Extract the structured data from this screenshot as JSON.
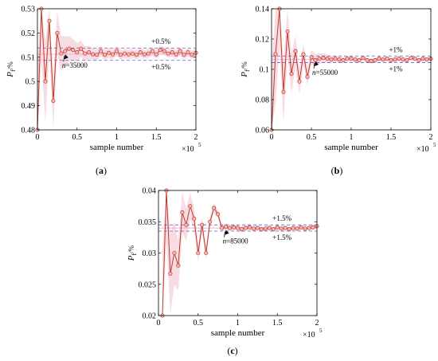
{
  "chart_data": [
    {
      "type": "line",
      "panel_label": "(a)",
      "ylabel_main": "P",
      "ylabel_sub": "f",
      "ylabel_unit": "/%",
      "xlabel": "sample number",
      "x_multiplier": "×10",
      "x_exponent": "5",
      "xlim": [
        0,
        2
      ],
      "ylim": [
        0.48,
        0.53
      ],
      "xticks": [
        "0",
        "0.5",
        "1",
        "1.5",
        "2"
      ],
      "yticks": [
        "0.48",
        "0.49",
        "0.5",
        "0.51",
        "0.52",
        "0.53"
      ],
      "band_upper": 0.5138,
      "band_lower": 0.5087,
      "band_upper_label": "+0.5%",
      "band_lower_label": "+0.5%",
      "annotation": "n=35000",
      "annotation_x": 0.35,
      "annotation_y": 0.5115,
      "x": [
        0.0,
        0.05,
        0.1,
        0.15,
        0.2,
        0.25,
        0.3,
        0.35,
        0.4,
        0.45,
        0.5,
        0.55,
        0.6,
        0.65,
        0.7,
        0.75,
        0.8,
        0.85,
        0.9,
        0.95,
        1.0,
        1.05,
        1.1,
        1.15,
        1.2,
        1.25,
        1.3,
        1.35,
        1.4,
        1.45,
        1.5,
        1.55,
        1.6,
        1.65,
        1.7,
        1.75,
        1.8,
        1.85,
        1.9,
        1.95,
        2.0
      ],
      "y": [
        0.48,
        0.53,
        0.5,
        0.525,
        0.492,
        0.52,
        0.5115,
        0.5125,
        0.5135,
        0.513,
        0.512,
        0.5135,
        0.5115,
        0.512,
        0.5112,
        0.511,
        0.5125,
        0.511,
        0.5118,
        0.5112,
        0.5125,
        0.511,
        0.5115,
        0.5112,
        0.5115,
        0.511,
        0.512,
        0.5112,
        0.5115,
        0.5125,
        0.5112,
        0.513,
        0.5125,
        0.5115,
        0.512,
        0.5112,
        0.5125,
        0.511,
        0.512,
        0.511,
        0.5118
      ]
    },
    {
      "type": "line",
      "panel_label": "(b)",
      "ylabel_main": "P",
      "ylabel_sub": "f",
      "ylabel_unit": "/%",
      "xlabel": "sample number",
      "x_multiplier": "×10",
      "x_exponent": "5",
      "xlim": [
        0,
        2
      ],
      "ylim": [
        0.06,
        0.14
      ],
      "xticks": [
        "0",
        "0.5",
        "1",
        "1.5",
        "2"
      ],
      "yticks": [
        "0.06",
        "0.08",
        "0.1",
        "0.12",
        "0.14"
      ],
      "band_upper": 0.1088,
      "band_lower": 0.1045,
      "band_upper_label": "+1%",
      "band_lower_label": "+1%",
      "annotation": "n=55000",
      "annotation_x": 0.55,
      "annotation_y": 0.1058,
      "x": [
        0.0,
        0.05,
        0.1,
        0.15,
        0.2,
        0.25,
        0.3,
        0.35,
        0.4,
        0.45,
        0.5,
        0.55,
        0.6,
        0.65,
        0.7,
        0.75,
        0.8,
        0.85,
        0.9,
        0.95,
        1.0,
        1.05,
        1.1,
        1.15,
        1.2,
        1.25,
        1.3,
        1.35,
        1.4,
        1.45,
        1.5,
        1.55,
        1.6,
        1.65,
        1.7,
        1.75,
        1.8,
        1.85,
        1.9,
        1.95,
        2.0
      ],
      "y": [
        0.06,
        0.11,
        0.14,
        0.085,
        0.125,
        0.097,
        0.112,
        0.092,
        0.11,
        0.095,
        0.108,
        0.106,
        0.107,
        0.1075,
        0.107,
        0.1065,
        0.107,
        0.1065,
        0.106,
        0.107,
        0.107,
        0.1065,
        0.106,
        0.1075,
        0.106,
        0.1055,
        0.106,
        0.107,
        0.1065,
        0.107,
        0.106,
        0.1065,
        0.107,
        0.1065,
        0.106,
        0.1075,
        0.107,
        0.106,
        0.107,
        0.1065,
        0.107
      ]
    },
    {
      "type": "line",
      "panel_label": "(c)",
      "ylabel_main": "P",
      "ylabel_sub": "f",
      "ylabel_unit": "/%",
      "xlabel": "sample number",
      "x_multiplier": "×10",
      "x_exponent": "5",
      "xlim": [
        0,
        2
      ],
      "ylim": [
        0.02,
        0.04
      ],
      "xticks": [
        "0",
        "0.5",
        "1",
        "1.5",
        "2"
      ],
      "yticks": [
        "0.02",
        "0.025",
        "0.03",
        "0.035",
        "0.04"
      ],
      "band_upper": 0.0345,
      "band_lower": 0.0335,
      "band_upper_label": "+1.5%",
      "band_lower_label": "+1.5%",
      "annotation": "n=85000",
      "annotation_x": 0.85,
      "annotation_y": 0.0338,
      "x": [
        0.05,
        0.1,
        0.15,
        0.2,
        0.25,
        0.3,
        0.35,
        0.4,
        0.45,
        0.5,
        0.55,
        0.6,
        0.65,
        0.7,
        0.75,
        0.8,
        0.85,
        0.9,
        0.95,
        1.0,
        1.05,
        1.1,
        1.15,
        1.2,
        1.25,
        1.3,
        1.35,
        1.4,
        1.45,
        1.5,
        1.55,
        1.6,
        1.65,
        1.7,
        1.75,
        1.8,
        1.85,
        1.9,
        1.95,
        2.0
      ],
      "y": [
        0.02,
        0.04,
        0.0267,
        0.03,
        0.028,
        0.0365,
        0.0345,
        0.0375,
        0.0355,
        0.03,
        0.0345,
        0.03,
        0.035,
        0.0372,
        0.0362,
        0.034,
        0.0342,
        0.034,
        0.0341,
        0.034,
        0.0338,
        0.034,
        0.0341,
        0.0339,
        0.034,
        0.0338,
        0.0339,
        0.034,
        0.0338,
        0.0341,
        0.0339,
        0.034,
        0.0338,
        0.034,
        0.0339,
        0.0341,
        0.0339,
        0.034,
        0.0341,
        0.0343
      ]
    }
  ]
}
